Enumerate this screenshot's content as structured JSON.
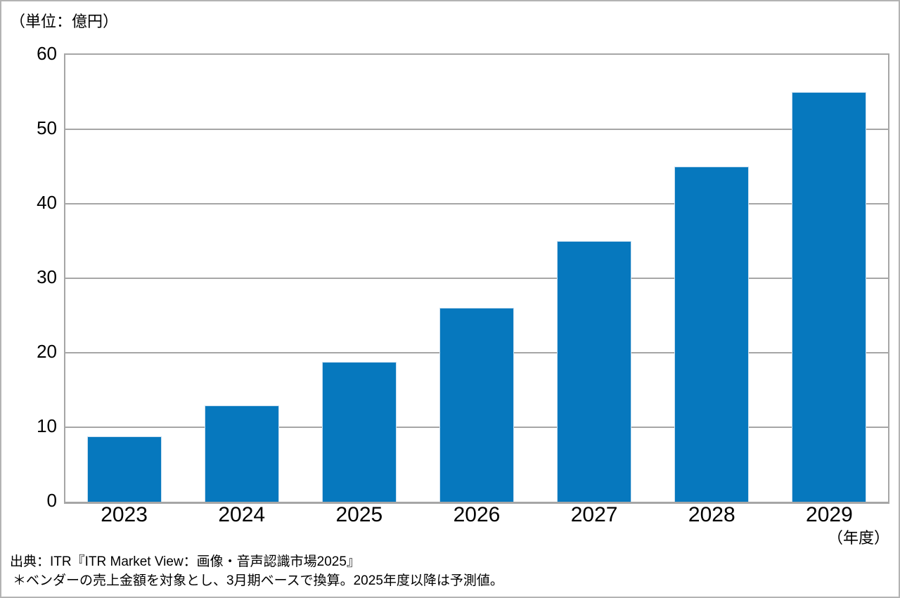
{
  "chart": {
    "unit_label": "（単位：億円）",
    "x_axis_suffix": "（年度）"
  },
  "footer": {
    "source": "出典：ITR『ITR Market View：画像・音声認識市場2025』",
    "note": "＊ベンダーの売上金額を対象とし、3月期ベースで換算。2025年度以降は予測値。"
  },
  "chart_data": {
    "type": "bar",
    "title": "",
    "categories": [
      "2023",
      "2024",
      "2025",
      "2026",
      "2027",
      "2028",
      "2029"
    ],
    "values": [
      8.8,
      12.9,
      18.8,
      26.0,
      35.0,
      45.0,
      55.0
    ],
    "unit": "億円",
    "xlabel": "年度",
    "ylabel": "単位：億円",
    "ylim": [
      0,
      60
    ],
    "ytick_step": 10,
    "yticks": [
      0,
      10,
      20,
      30,
      40,
      50,
      60
    ],
    "grid": true,
    "legend": false,
    "colors": {
      "bar_fill": "#0678be",
      "bar_border": "#c9dff0",
      "gridline": "#a6a6a6",
      "plot_border": "#a6a6a6",
      "text": "#000000"
    }
  }
}
